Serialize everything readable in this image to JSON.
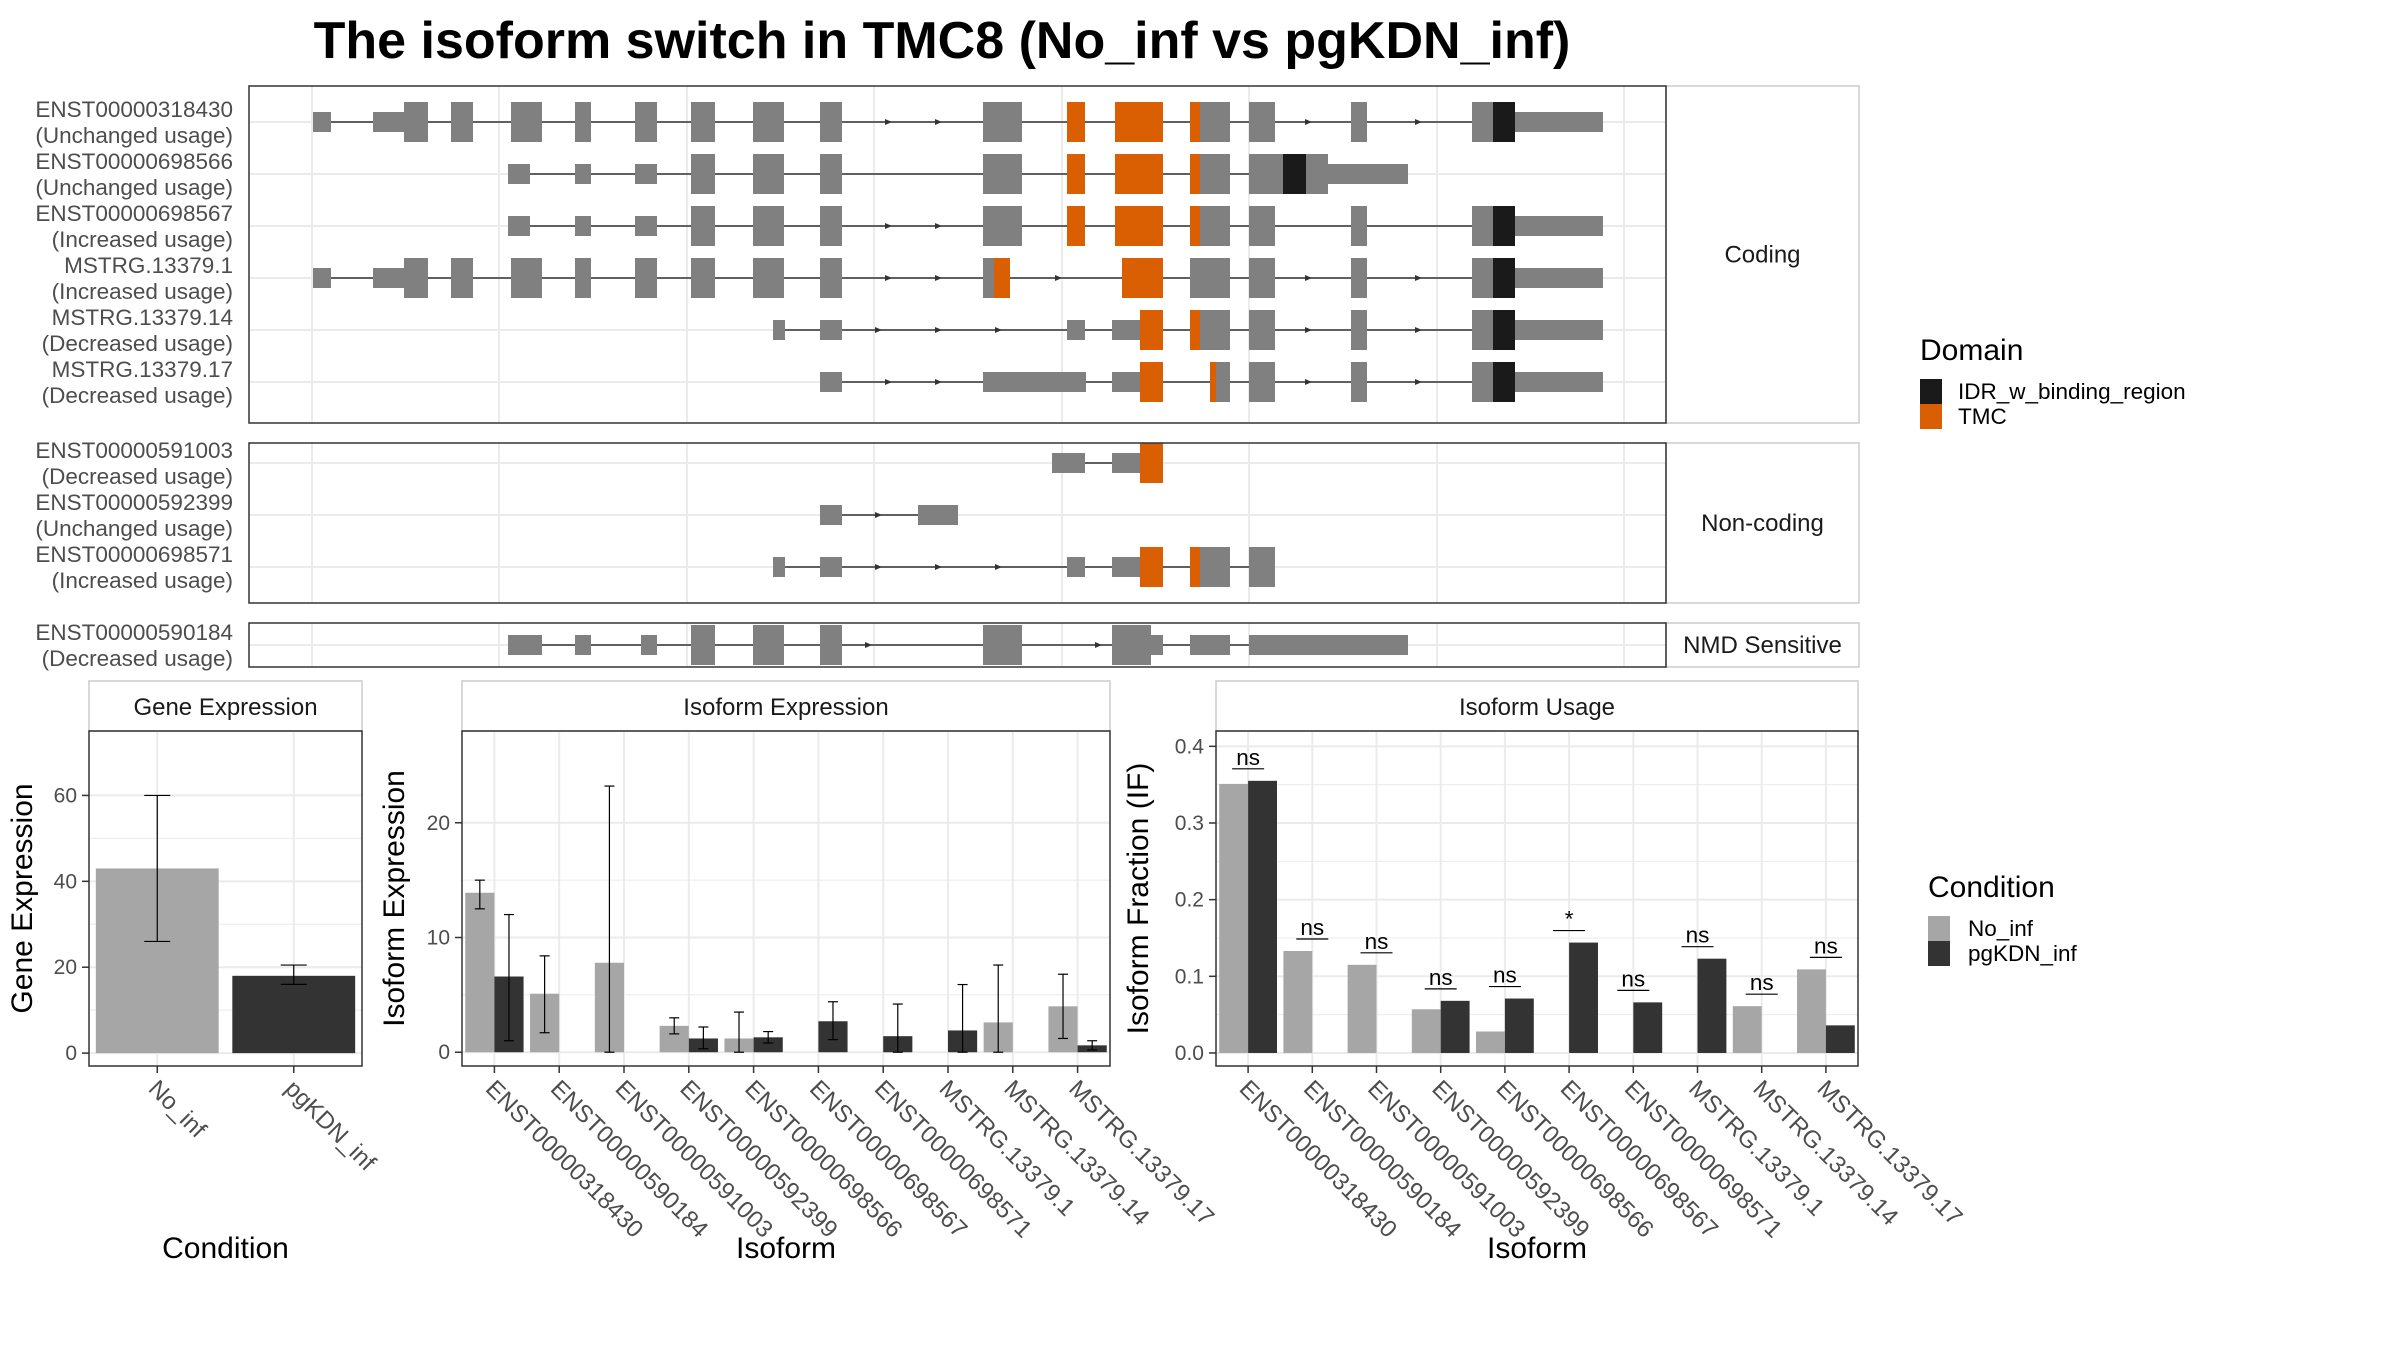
{
  "title": "The isoform switch in TMC8 (No_inf vs pgKDN_inf)",
  "colors": {
    "exon": "#808080",
    "TMC": "#D95F02",
    "IDR_w_binding_region": "#1A1A1A",
    "No_inf": "#A6A6A6",
    "pgKDN_inf": "#333333",
    "grid": "#EBEBEB",
    "panel_border": "#333333"
  },
  "structure": {
    "groups": [
      {
        "strip": "Coding",
        "transcripts": [
          {
            "id": "ENST00000318430",
            "usage": "(Unchanged usage)"
          },
          {
            "id": "ENST00000698566",
            "usage": "(Unchanged usage)"
          },
          {
            "id": "ENST00000698567",
            "usage": "(Increased usage)"
          },
          {
            "id": "MSTRG.13379.1",
            "usage": "(Increased usage)"
          },
          {
            "id": "MSTRG.13379.14",
            "usage": "(Decreased usage)"
          },
          {
            "id": "MSTRG.13379.17",
            "usage": "(Decreased usage)"
          }
        ]
      },
      {
        "strip": "Non-coding",
        "transcripts": [
          {
            "id": "ENST00000591003",
            "usage": "(Decreased usage)"
          },
          {
            "id": "ENST00000592399",
            "usage": "(Unchanged usage)"
          },
          {
            "id": "ENST00000698571",
            "usage": "(Increased usage)"
          }
        ]
      },
      {
        "strip": "NMD Sensitive",
        "transcripts": [
          {
            "id": "ENST00000590184",
            "usage": "(Decreased usage)"
          }
        ]
      }
    ],
    "legend": {
      "title": "Domain",
      "items": [
        {
          "label": "IDR_w_binding_region",
          "color": "#1A1A1A"
        },
        {
          "label": "TMC",
          "color": "#D95F02"
        }
      ]
    }
  },
  "chart_data": [
    {
      "type": "bar",
      "panel": "Gene Expression",
      "categories": [
        "No_inf",
        "pgKDN_inf"
      ],
      "values": [
        43,
        18
      ],
      "error": [
        [
          26,
          60
        ],
        [
          16,
          20.5
        ]
      ],
      "ylim": [
        -3,
        75
      ],
      "yticks": [
        0,
        20,
        40,
        60
      ],
      "xlabel": "Condition",
      "ylabel": "Gene Expression",
      "grid": true
    },
    {
      "type": "bar",
      "panel": "Isoform Expression",
      "categories": [
        "ENST00000318430",
        "ENST00000590184",
        "ENST00000591003",
        "ENST00000592399",
        "ENST00000698566",
        "ENST00000698567",
        "ENST00000698571",
        "MSTRG.13379.1",
        "MSTRG.13379.14",
        "MSTRG.13379.17"
      ],
      "series": [
        {
          "name": "No_inf",
          "values": [
            13.9,
            5.1,
            7.8,
            2.3,
            1.2,
            0,
            0,
            0,
            2.6,
            4
          ],
          "error": [
            [
              12.5,
              15
            ],
            [
              1.7,
              8.4
            ],
            [
              0,
              23.2
            ],
            [
              1.6,
              3.0
            ],
            [
              0,
              3.5
            ],
            [
              0,
              0
            ],
            [
              0,
              0
            ],
            [
              0,
              0
            ],
            [
              0,
              7.6
            ],
            [
              1.2,
              6.8
            ]
          ]
        },
        {
          "name": "pgKDN_inf",
          "values": [
            6.6,
            0,
            0,
            1.2,
            1.3,
            2.7,
            1.4,
            1.9,
            0,
            0.6
          ],
          "error": [
            [
              1,
              12
            ],
            [
              0,
              0
            ],
            [
              0,
              0
            ],
            [
              0.3,
              2.2
            ],
            [
              0.8,
              1.8
            ],
            [
              1.1,
              4.4
            ],
            [
              0,
              4.2
            ],
            [
              0,
              5.9
            ],
            [
              0,
              0
            ],
            [
              0.2,
              1
            ]
          ]
        }
      ],
      "ylim": [
        -1.2,
        28
      ],
      "yticks": [
        0,
        10,
        20
      ],
      "xlabel": "Isoform",
      "ylabel": "Isoform Expression",
      "grid": true
    },
    {
      "type": "bar",
      "panel": "Isoform Usage",
      "categories": [
        "ENST00000318430",
        "ENST00000590184",
        "ENST00000591003",
        "ENST00000592399",
        "ENST00000698566",
        "ENST00000698567",
        "ENST00000698571",
        "MSTRG.13379.1",
        "MSTRG.13379.14",
        "MSTRG.13379.17"
      ],
      "series": [
        {
          "name": "No_inf",
          "values": [
            0.351,
            0.133,
            0.115,
            0.057,
            0.028,
            0,
            0,
            0,
            0.061,
            0.109
          ]
        },
        {
          "name": "pgKDN_inf",
          "values": [
            0.355,
            0,
            0,
            0.068,
            0.071,
            0.144,
            0.066,
            0.123,
            0,
            0.036
          ]
        }
      ],
      "significance": [
        "ns",
        "ns",
        "ns",
        "ns",
        "ns",
        "*",
        "ns",
        "ns",
        "ns",
        "ns"
      ],
      "ylim": [
        -0.017,
        0.42
      ],
      "yticks": [
        0.0,
        0.1,
        0.2,
        0.3,
        0.4
      ],
      "ytick_labels": [
        "0.0",
        "0.1",
        "0.2",
        "0.3",
        "0.4"
      ],
      "xlabel": "Isoform",
      "ylabel": "Isoform Fraction (IF)",
      "grid": true
    }
  ],
  "condition_legend": {
    "title": "Condition",
    "items": [
      {
        "label": "No_inf",
        "color": "#A6A6A6"
      },
      {
        "label": "pgKDN_inf",
        "color": "#333333"
      }
    ]
  }
}
